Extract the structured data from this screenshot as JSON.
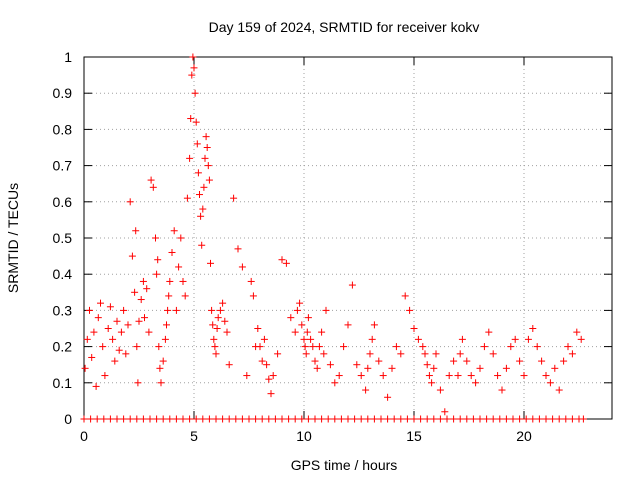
{
  "chart_data": {
    "type": "scatter",
    "title": "Day 159 of 2024, SRMTID for receiver kokv",
    "xlabel": "GPS time / hours",
    "ylabel": "SRMTID / TECUs",
    "xlim": [
      0,
      24
    ],
    "ylim": [
      0,
      1
    ],
    "x_ticks": [
      0,
      5,
      10,
      15,
      20
    ],
    "y_ticks": [
      0,
      0.1,
      0.2,
      0.3,
      0.4,
      0.5,
      0.6,
      0.7,
      0.8,
      0.9,
      1
    ],
    "grid": true,
    "marker": "plus",
    "series": [
      {
        "name": "SRMTID",
        "color": "#ff0000",
        "x": [
          0.05,
          0.15,
          0.25,
          0.35,
          0.45,
          0.55,
          0.65,
          0.75,
          0.85,
          0.95,
          1.1,
          1.2,
          1.3,
          1.4,
          1.5,
          1.6,
          1.7,
          1.8,
          1.9,
          2.0,
          2.1,
          2.2,
          2.3,
          2.35,
          2.4,
          2.45,
          2.5,
          2.6,
          2.7,
          2.75,
          2.85,
          2.95,
          3.05,
          3.15,
          3.25,
          3.3,
          3.35,
          3.4,
          3.45,
          3.5,
          3.6,
          3.7,
          3.75,
          3.8,
          3.85,
          3.9,
          4.0,
          4.1,
          4.2,
          4.3,
          4.4,
          4.5,
          4.6,
          4.7,
          4.8,
          4.85,
          4.9,
          4.95,
          5.0,
          5.05,
          5.1,
          5.15,
          5.2,
          5.25,
          5.3,
          5.35,
          5.4,
          5.45,
          5.5,
          5.55,
          5.6,
          5.65,
          5.7,
          5.75,
          5.8,
          5.85,
          5.9,
          5.95,
          6.0,
          6.05,
          6.1,
          6.2,
          6.3,
          6.4,
          6.5,
          6.6,
          6.8,
          7.0,
          7.2,
          7.4,
          7.6,
          7.7,
          7.8,
          7.9,
          8.0,
          8.1,
          8.2,
          8.3,
          8.4,
          8.5,
          8.6,
          8.8,
          9.0,
          9.2,
          9.4,
          9.6,
          9.7,
          9.8,
          9.9,
          10.0,
          10.05,
          10.1,
          10.15,
          10.2,
          10.3,
          10.4,
          10.5,
          10.6,
          10.7,
          10.8,
          10.9,
          11.0,
          11.2,
          11.4,
          11.6,
          11.8,
          12.0,
          12.2,
          12.4,
          12.6,
          12.8,
          12.9,
          13.0,
          13.1,
          13.2,
          13.4,
          13.6,
          13.8,
          14.0,
          14.2,
          14.4,
          14.6,
          14.8,
          15.0,
          15.2,
          15.4,
          15.5,
          15.6,
          15.7,
          15.8,
          15.9,
          16.0,
          16.2,
          16.4,
          16.6,
          16.8,
          17.0,
          17.1,
          17.2,
          17.4,
          17.6,
          17.8,
          18.0,
          18.2,
          18.4,
          18.6,
          18.8,
          19.0,
          19.2,
          19.4,
          19.6,
          19.8,
          20.0,
          20.2,
          20.4,
          20.6,
          20.8,
          21.0,
          21.2,
          21.4,
          21.6,
          21.8,
          22.0,
          22.2,
          22.4,
          22.6
        ],
        "y": [
          0.14,
          0.22,
          0.3,
          0.17,
          0.24,
          0.09,
          0.28,
          0.32,
          0.2,
          0.12,
          0.25,
          0.31,
          0.22,
          0.16,
          0.27,
          0.19,
          0.24,
          0.3,
          0.18,
          0.26,
          0.6,
          0.45,
          0.35,
          0.52,
          0.2,
          0.1,
          0.27,
          0.33,
          0.38,
          0.28,
          0.36,
          0.24,
          0.66,
          0.64,
          0.5,
          0.4,
          0.44,
          0.2,
          0.14,
          0.1,
          0.16,
          0.22,
          0.26,
          0.3,
          0.34,
          0.38,
          0.46,
          0.52,
          0.3,
          0.42,
          0.5,
          0.38,
          0.34,
          0.61,
          0.72,
          0.83,
          0.95,
          1.0,
          0.97,
          0.9,
          0.82,
          0.76,
          0.68,
          0.62,
          0.56,
          0.48,
          0.58,
          0.64,
          0.72,
          0.78,
          0.75,
          0.7,
          0.66,
          0.43,
          0.3,
          0.26,
          0.22,
          0.2,
          0.18,
          0.25,
          0.28,
          0.3,
          0.32,
          0.27,
          0.24,
          0.15,
          0.61,
          0.47,
          0.42,
          0.12,
          0.38,
          0.34,
          0.2,
          0.25,
          0.2,
          0.16,
          0.22,
          0.15,
          0.11,
          0.07,
          0.12,
          0.18,
          0.44,
          0.43,
          0.28,
          0.24,
          0.3,
          0.32,
          0.26,
          0.22,
          0.2,
          0.18,
          0.24,
          0.28,
          0.22,
          0.2,
          0.16,
          0.14,
          0.2,
          0.24,
          0.18,
          0.3,
          0.15,
          0.1,
          0.12,
          0.2,
          0.26,
          0.37,
          0.15,
          0.12,
          0.08,
          0.14,
          0.18,
          0.22,
          0.26,
          0.16,
          0.12,
          0.06,
          0.14,
          0.2,
          0.18,
          0.34,
          0.3,
          0.25,
          0.22,
          0.2,
          0.18,
          0.15,
          0.12,
          0.1,
          0.14,
          0.18,
          0.08,
          0.02,
          0.12,
          0.16,
          0.12,
          0.18,
          0.22,
          0.16,
          0.12,
          0.1,
          0.14,
          0.2,
          0.24,
          0.18,
          0.12,
          0.08,
          0.14,
          0.2,
          0.22,
          0.16,
          0.12,
          0.22,
          0.25,
          0.2,
          0.16,
          0.12,
          0.1,
          0.14,
          0.08,
          0.16,
          0.2,
          0.18,
          0.24,
          0.22
        ],
        "zero_points_x": [
          0.0,
          0.3,
          0.6,
          0.9,
          1.2,
          1.5,
          1.8,
          2.1,
          2.4,
          2.7,
          3.0,
          3.3,
          3.6,
          3.9,
          4.2,
          4.5,
          4.8,
          5.1,
          5.4,
          5.7,
          6.0,
          6.3,
          6.6,
          6.9,
          7.2,
          7.5,
          7.8,
          8.1,
          8.4,
          8.7,
          9.0,
          9.3,
          9.6,
          9.9,
          10.2,
          10.5,
          10.8,
          11.1,
          11.4,
          11.7,
          12.0,
          12.3,
          12.6,
          12.9,
          13.2,
          13.5,
          13.8,
          14.1,
          14.4,
          14.7,
          15.0,
          15.3,
          15.6,
          15.9,
          16.2,
          16.5,
          16.8,
          17.1,
          17.4,
          17.7,
          18.0,
          18.3,
          18.6,
          18.9,
          19.2,
          19.5,
          19.8,
          20.1,
          20.4,
          20.7,
          21.0,
          21.3,
          21.6,
          21.9,
          22.2,
          22.5,
          22.7
        ]
      }
    ]
  }
}
